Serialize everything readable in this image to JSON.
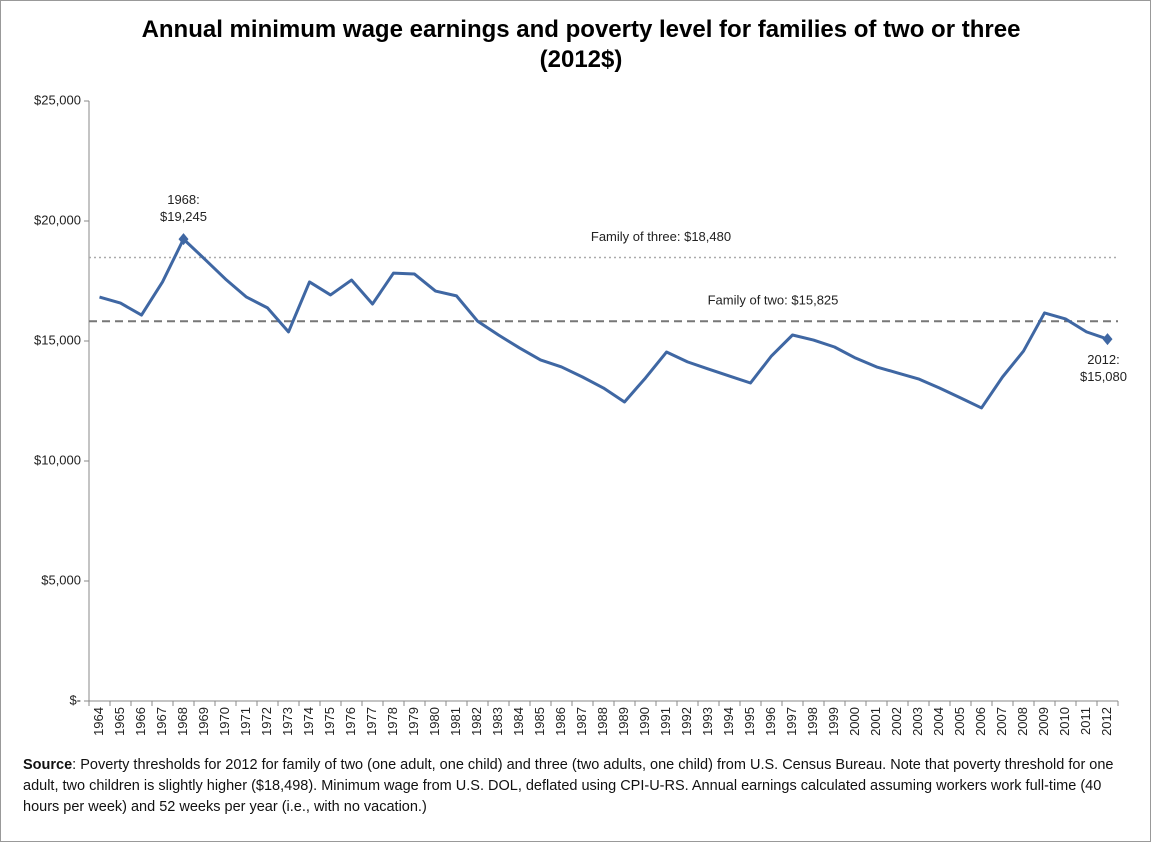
{
  "chart_data": {
    "type": "line",
    "title": "Annual minimum wage earnings and poverty level for families of two or three (2012$)",
    "categories": [
      "1964",
      "1965",
      "1966",
      "1967",
      "1968",
      "1969",
      "1970",
      "1971",
      "1972",
      "1973",
      "1974",
      "1975",
      "1976",
      "1977",
      "1978",
      "1979",
      "1980",
      "1981",
      "1982",
      "1983",
      "1984",
      "1985",
      "1986",
      "1987",
      "1988",
      "1989",
      "1990",
      "1991",
      "1992",
      "1993",
      "1994",
      "1995",
      "1996",
      "1997",
      "1998",
      "1999",
      "2000",
      "2001",
      "2002",
      "2003",
      "2004",
      "2005",
      "2006",
      "2007",
      "2008",
      "2009",
      "2010",
      "2011",
      "2012"
    ],
    "series": [
      {
        "color": "#3f67a3",
        "values": [
          16830,
          16580,
          16080,
          17460,
          19245,
          18420,
          17580,
          16830,
          16380,
          15380,
          17460,
          16920,
          17540,
          16540,
          17830,
          17790,
          17080,
          16880,
          15830,
          15250,
          14710,
          14210,
          13920,
          13500,
          13040,
          12460,
          13460,
          14540,
          14130,
          13830,
          13540,
          13250,
          14380,
          15250,
          15040,
          14750,
          14290,
          13920,
          13670,
          13420,
          13040,
          12630,
          12210,
          13500,
          14580,
          16170,
          15920,
          15380,
          15080
        ],
        "value_labels": [
          null,
          null,
          null,
          null,
          "1968:\n$19,245",
          null,
          null,
          null,
          null,
          null,
          null,
          null,
          null,
          null,
          null,
          null,
          null,
          null,
          null,
          null,
          null,
          null,
          null,
          null,
          null,
          null,
          null,
          null,
          null,
          null,
          null,
          null,
          null,
          null,
          null,
          null,
          null,
          null,
          null,
          null,
          null,
          null,
          null,
          null,
          null,
          null,
          null,
          null,
          "2012:\n$15,080"
        ]
      }
    ],
    "reference_lines": [
      {
        "label": "Family of three: $18,480",
        "value": 18480,
        "color": "#aaaaaa",
        "style": "dotted"
      },
      {
        "label": "Family of two: $15,825",
        "value": 15825,
        "color": "#777777",
        "style": "dashed"
      }
    ],
    "ylim": [
      0,
      25000
    ],
    "yticks": [
      {
        "value": 0,
        "label": "$-"
      },
      {
        "value": 5000,
        "label": "$5,000"
      },
      {
        "value": 10000,
        "label": "$10,000"
      },
      {
        "value": 15000,
        "label": "$15,000"
      },
      {
        "value": 20000,
        "label": "$20,000"
      },
      {
        "value": 25000,
        "label": "$25,000"
      }
    ],
    "grid": false,
    "source_label": "Source",
    "source_text": ": Poverty thresholds for 2012 for family of two (one adult, one child) and three (two adults, one child) from U.S. Census Bureau.  Note that poverty threshold for one adult, two children is slightly higher ($18,498).  Minimum wage from U.S. DOL, deflated using CPI-U-RS.  Annual earnings calculated assuming workers work full-time (40 hours  per week) and 52 weeks  per year (i.e., with no vacation.)"
  }
}
